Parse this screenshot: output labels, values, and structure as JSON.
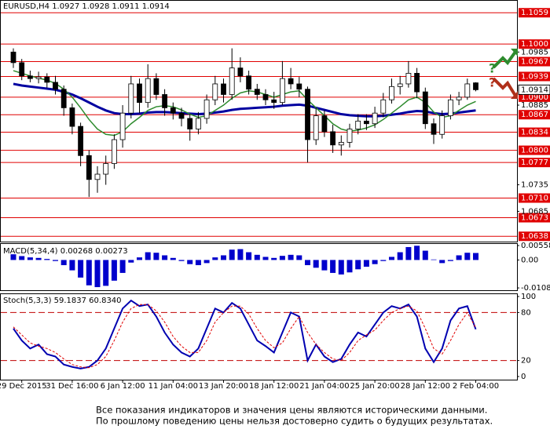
{
  "chart_data": [
    {
      "type": "candlestick",
      "title": "EURUSD,H4  1.0927 1.0928 1.0911 1.0914",
      "categories": [
        null,
        "29 Dec 2015",
        null,
        null,
        null,
        null,
        null,
        "31 Dec 16:00",
        null,
        null,
        null,
        null,
        null,
        "6 Jan 12:00",
        null,
        null,
        null,
        null,
        null,
        "11 Jan 04:00",
        null,
        null,
        null,
        null,
        null,
        "13 Jan 20:00",
        null,
        null,
        null,
        null,
        null,
        "18 Jan 12:00",
        null,
        null,
        null,
        null,
        null,
        "21 Jan 04:00",
        null,
        null,
        null,
        null,
        null,
        "25 Jan 20:00",
        null,
        null,
        null,
        null,
        null,
        "28 Jan 12:00",
        null,
        null,
        null,
        null,
        null,
        "2 Feb 04:00"
      ],
      "open": [
        1.0985,
        1.0965,
        1.094,
        1.0935,
        1.0938,
        1.0928,
        1.0915,
        1.088,
        1.0845,
        1.079,
        1.0745,
        1.0755,
        1.0775,
        1.082,
        1.087,
        1.0925,
        1.089,
        1.0935,
        1.0905,
        1.088,
        1.087,
        1.086,
        1.084,
        1.086,
        1.0895,
        1.0925,
        1.0905,
        1.0955,
        1.094,
        1.0915,
        1.0905,
        1.0895,
        1.089,
        1.0935,
        1.0925,
        1.0915,
        1.082,
        1.0865,
        1.0835,
        1.081,
        1.0815,
        1.084,
        1.0855,
        1.085,
        1.087,
        1.0895,
        1.092,
        1.0925,
        1.0945,
        1.091,
        1.085,
        1.083,
        1.0865,
        1.0895,
        1.09,
        1.0927
      ],
      "high": [
        1.0992,
        1.0972,
        1.095,
        1.0948,
        1.0945,
        1.094,
        1.0922,
        1.0888,
        1.0852,
        1.08,
        1.077,
        1.079,
        1.083,
        1.0885,
        1.094,
        1.0935,
        1.0962,
        1.0945,
        1.0915,
        1.089,
        1.088,
        1.0868,
        1.0872,
        1.0905,
        1.094,
        1.0935,
        1.0992,
        1.0975,
        1.095,
        1.0925,
        1.0915,
        1.091,
        1.0968,
        1.0955,
        1.0938,
        1.092,
        1.088,
        1.0875,
        1.0848,
        1.0828,
        1.085,
        1.0868,
        1.0868,
        1.0882,
        1.0908,
        1.0935,
        1.094,
        1.0968,
        1.0955,
        1.0918,
        1.086,
        1.0875,
        1.0905,
        1.091,
        1.0935,
        1.0928
      ],
      "low": [
        1.0955,
        1.0932,
        1.0928,
        1.0926,
        1.0918,
        1.0905,
        1.0865,
        1.083,
        1.077,
        1.0712,
        1.072,
        1.0735,
        1.0765,
        1.0805,
        1.086,
        1.087,
        1.088,
        1.0895,
        1.0865,
        1.0858,
        1.0845,
        1.0818,
        1.083,
        1.085,
        1.0885,
        1.089,
        1.0895,
        1.0928,
        1.0905,
        1.0895,
        1.0885,
        1.0878,
        1.0885,
        1.0915,
        1.09,
        1.0777,
        1.081,
        1.0825,
        1.0795,
        1.079,
        1.0805,
        1.083,
        1.0838,
        1.0842,
        1.0862,
        1.0888,
        1.0905,
        1.0918,
        1.0898,
        1.084,
        1.0812,
        1.0822,
        1.0858,
        1.0885,
        1.0895,
        1.0911
      ],
      "close": [
        1.0965,
        1.094,
        1.0935,
        1.0938,
        1.0928,
        1.0915,
        1.088,
        1.0845,
        1.079,
        1.0745,
        1.0755,
        1.0775,
        1.082,
        1.087,
        1.0925,
        1.089,
        1.0935,
        1.0905,
        1.088,
        1.087,
        1.086,
        1.084,
        1.086,
        1.0895,
        1.0925,
        1.0905,
        1.0955,
        1.094,
        1.0915,
        1.0905,
        1.0895,
        1.089,
        1.0935,
        1.0925,
        1.0915,
        1.082,
        1.0865,
        1.0835,
        1.081,
        1.0815,
        1.084,
        1.0855,
        1.085,
        1.087,
        1.0895,
        1.092,
        1.0925,
        1.0945,
        1.091,
        1.085,
        1.083,
        1.0865,
        1.0895,
        1.09,
        1.0925,
        1.0914
      ],
      "lines": [
        {
          "color": "#0000a0",
          "width": 3,
          "values": [
            1.0925,
            1.0922,
            1.092,
            1.0918,
            1.0916,
            1.0914,
            1.091,
            1.0905,
            1.0898,
            1.089,
            1.0882,
            1.0875,
            1.087,
            1.0868,
            1.0868,
            1.0869,
            1.0871,
            1.0872,
            1.0872,
            1.0871,
            1.087,
            1.0869,
            1.0868,
            1.0869,
            1.0871,
            1.0873,
            1.0876,
            1.0878,
            1.0879,
            1.088,
            1.0881,
            1.0882,
            1.0884,
            1.0885,
            1.0886,
            1.0884,
            1.088,
            1.0876,
            1.0872,
            1.0868,
            1.0866,
            1.0865,
            1.0864,
            1.0864,
            1.0865,
            1.0867,
            1.0869,
            1.0872,
            1.0874,
            1.0873,
            1.087,
            1.0868,
            1.0869,
            1.0871,
            1.0873,
            1.0875
          ]
        },
        {
          "color": "#2e8b2e",
          "width": 1.5,
          "values": [
            1.095,
            1.0945,
            1.094,
            1.0936,
            1.0932,
            1.0926,
            1.0915,
            1.09,
            1.088,
            1.0858,
            1.084,
            1.083,
            1.0828,
            1.0835,
            1.085,
            1.0862,
            1.0875,
            1.0882,
            1.0884,
            1.0882,
            1.0876,
            1.0868,
            1.0862,
            1.0865,
            1.0875,
            1.0885,
            1.0898,
            1.0908,
            1.0912,
            1.091,
            1.0905,
            1.09,
            1.0905,
            1.091,
            1.0912,
            1.0895,
            1.088,
            1.0865,
            1.085,
            1.084,
            1.0836,
            1.0838,
            1.0842,
            1.0848,
            1.0858,
            1.087,
            1.0882,
            1.0895,
            1.09,
            1.089,
            1.0872,
            1.0862,
            1.0865,
            1.0875,
            1.0885,
            1.0892
          ]
        }
      ],
      "ylim": [
        1.0628,
        1.1083
      ],
      "yticks": [
        1.0985,
        1.0885,
        1.0735,
        1.0685
      ],
      "levels": [
        1.1059,
        {
          "value": 1.1,
          "label": "1.1000"
        },
        1.0967,
        1.0939,
        {
          "value": 1.09,
          "label": "1.0900"
        },
        1.0867,
        1.0834,
        {
          "value": 1.08,
          "label": "1.0800"
        },
        1.0777,
        {
          "value": 1.071,
          "label": "1.0710"
        },
        1.0673,
        1.0638
      ],
      "level_color": "#e00000",
      "signals": {
        "up": "?",
        "down": "?"
      }
    },
    {
      "type": "bar",
      "title": "MACD(5,34,4) 0.00268 0.00273",
      "color": "#0000cc",
      "values": [
        0.0022,
        0.0015,
        0.001,
        0.0008,
        0.0004,
        -0.0004,
        -0.002,
        -0.004,
        -0.0068,
        -0.0098,
        -0.0105,
        -0.01,
        -0.008,
        -0.005,
        -0.001,
        0.001,
        0.003,
        0.0028,
        0.0018,
        0.0008,
        -0.0004,
        -0.0016,
        -0.002,
        -0.0012,
        0.001,
        0.0018,
        0.004,
        0.0042,
        0.003,
        0.002,
        0.0012,
        0.0008,
        0.0016,
        0.002,
        0.0018,
        -0.002,
        -0.003,
        -0.004,
        -0.005,
        -0.0056,
        -0.0048,
        -0.0036,
        -0.0026,
        -0.0016,
        -0.0004,
        0.0012,
        0.003,
        0.005,
        0.0055,
        0.0036,
        0.0002,
        -0.0012,
        -0.0004,
        0.0018,
        0.0028,
        0.0027
      ],
      "ylim": [
        -0.0117,
        0.0062
      ],
      "yticks": [
        0.00558,
        {
          "value": 0,
          "label": "0.00"
        },
        -0.01081
      ]
    },
    {
      "type": "line",
      "title": "Stoch(5,3,3) 59.1837 60.8340",
      "series": [
        {
          "color": "#0000b0",
          "values": [
            60,
            45,
            35,
            40,
            28,
            25,
            15,
            12,
            10,
            12,
            20,
            35,
            60,
            85,
            95,
            88,
            90,
            75,
            55,
            40,
            30,
            25,
            35,
            60,
            85,
            80,
            92,
            85,
            65,
            45,
            38,
            30,
            55,
            80,
            75,
            20,
            40,
            25,
            18,
            22,
            40,
            55,
            50,
            65,
            80,
            88,
            85,
            90,
            75,
            35,
            18,
            35,
            70,
            85,
            88,
            59
          ]
        },
        {
          "color": "#e00000",
          "dashed": true,
          "values": [
            62,
            52,
            42,
            38,
            35,
            30,
            22,
            15,
            12,
            11,
            15,
            25,
            45,
            68,
            85,
            90,
            90,
            82,
            68,
            50,
            38,
            30,
            30,
            45,
            68,
            80,
            88,
            88,
            78,
            60,
            45,
            36,
            42,
            60,
            75,
            55,
            40,
            30,
            22,
            20,
            30,
            45,
            52,
            58,
            70,
            80,
            85,
            88,
            82,
            60,
            35,
            28,
            45,
            65,
            80,
            61
          ]
        }
      ],
      "ylim": [
        0,
        100
      ],
      "yticks": [
        100,
        80,
        20,
        0
      ],
      "levels": [
        80,
        20
      ]
    }
  ],
  "footer": [
    "Все показания индикаторов и значения цены являются историческими данными.",
    "По прошлому поведению цены нельзя достоверно судить о будущих результатах."
  ]
}
